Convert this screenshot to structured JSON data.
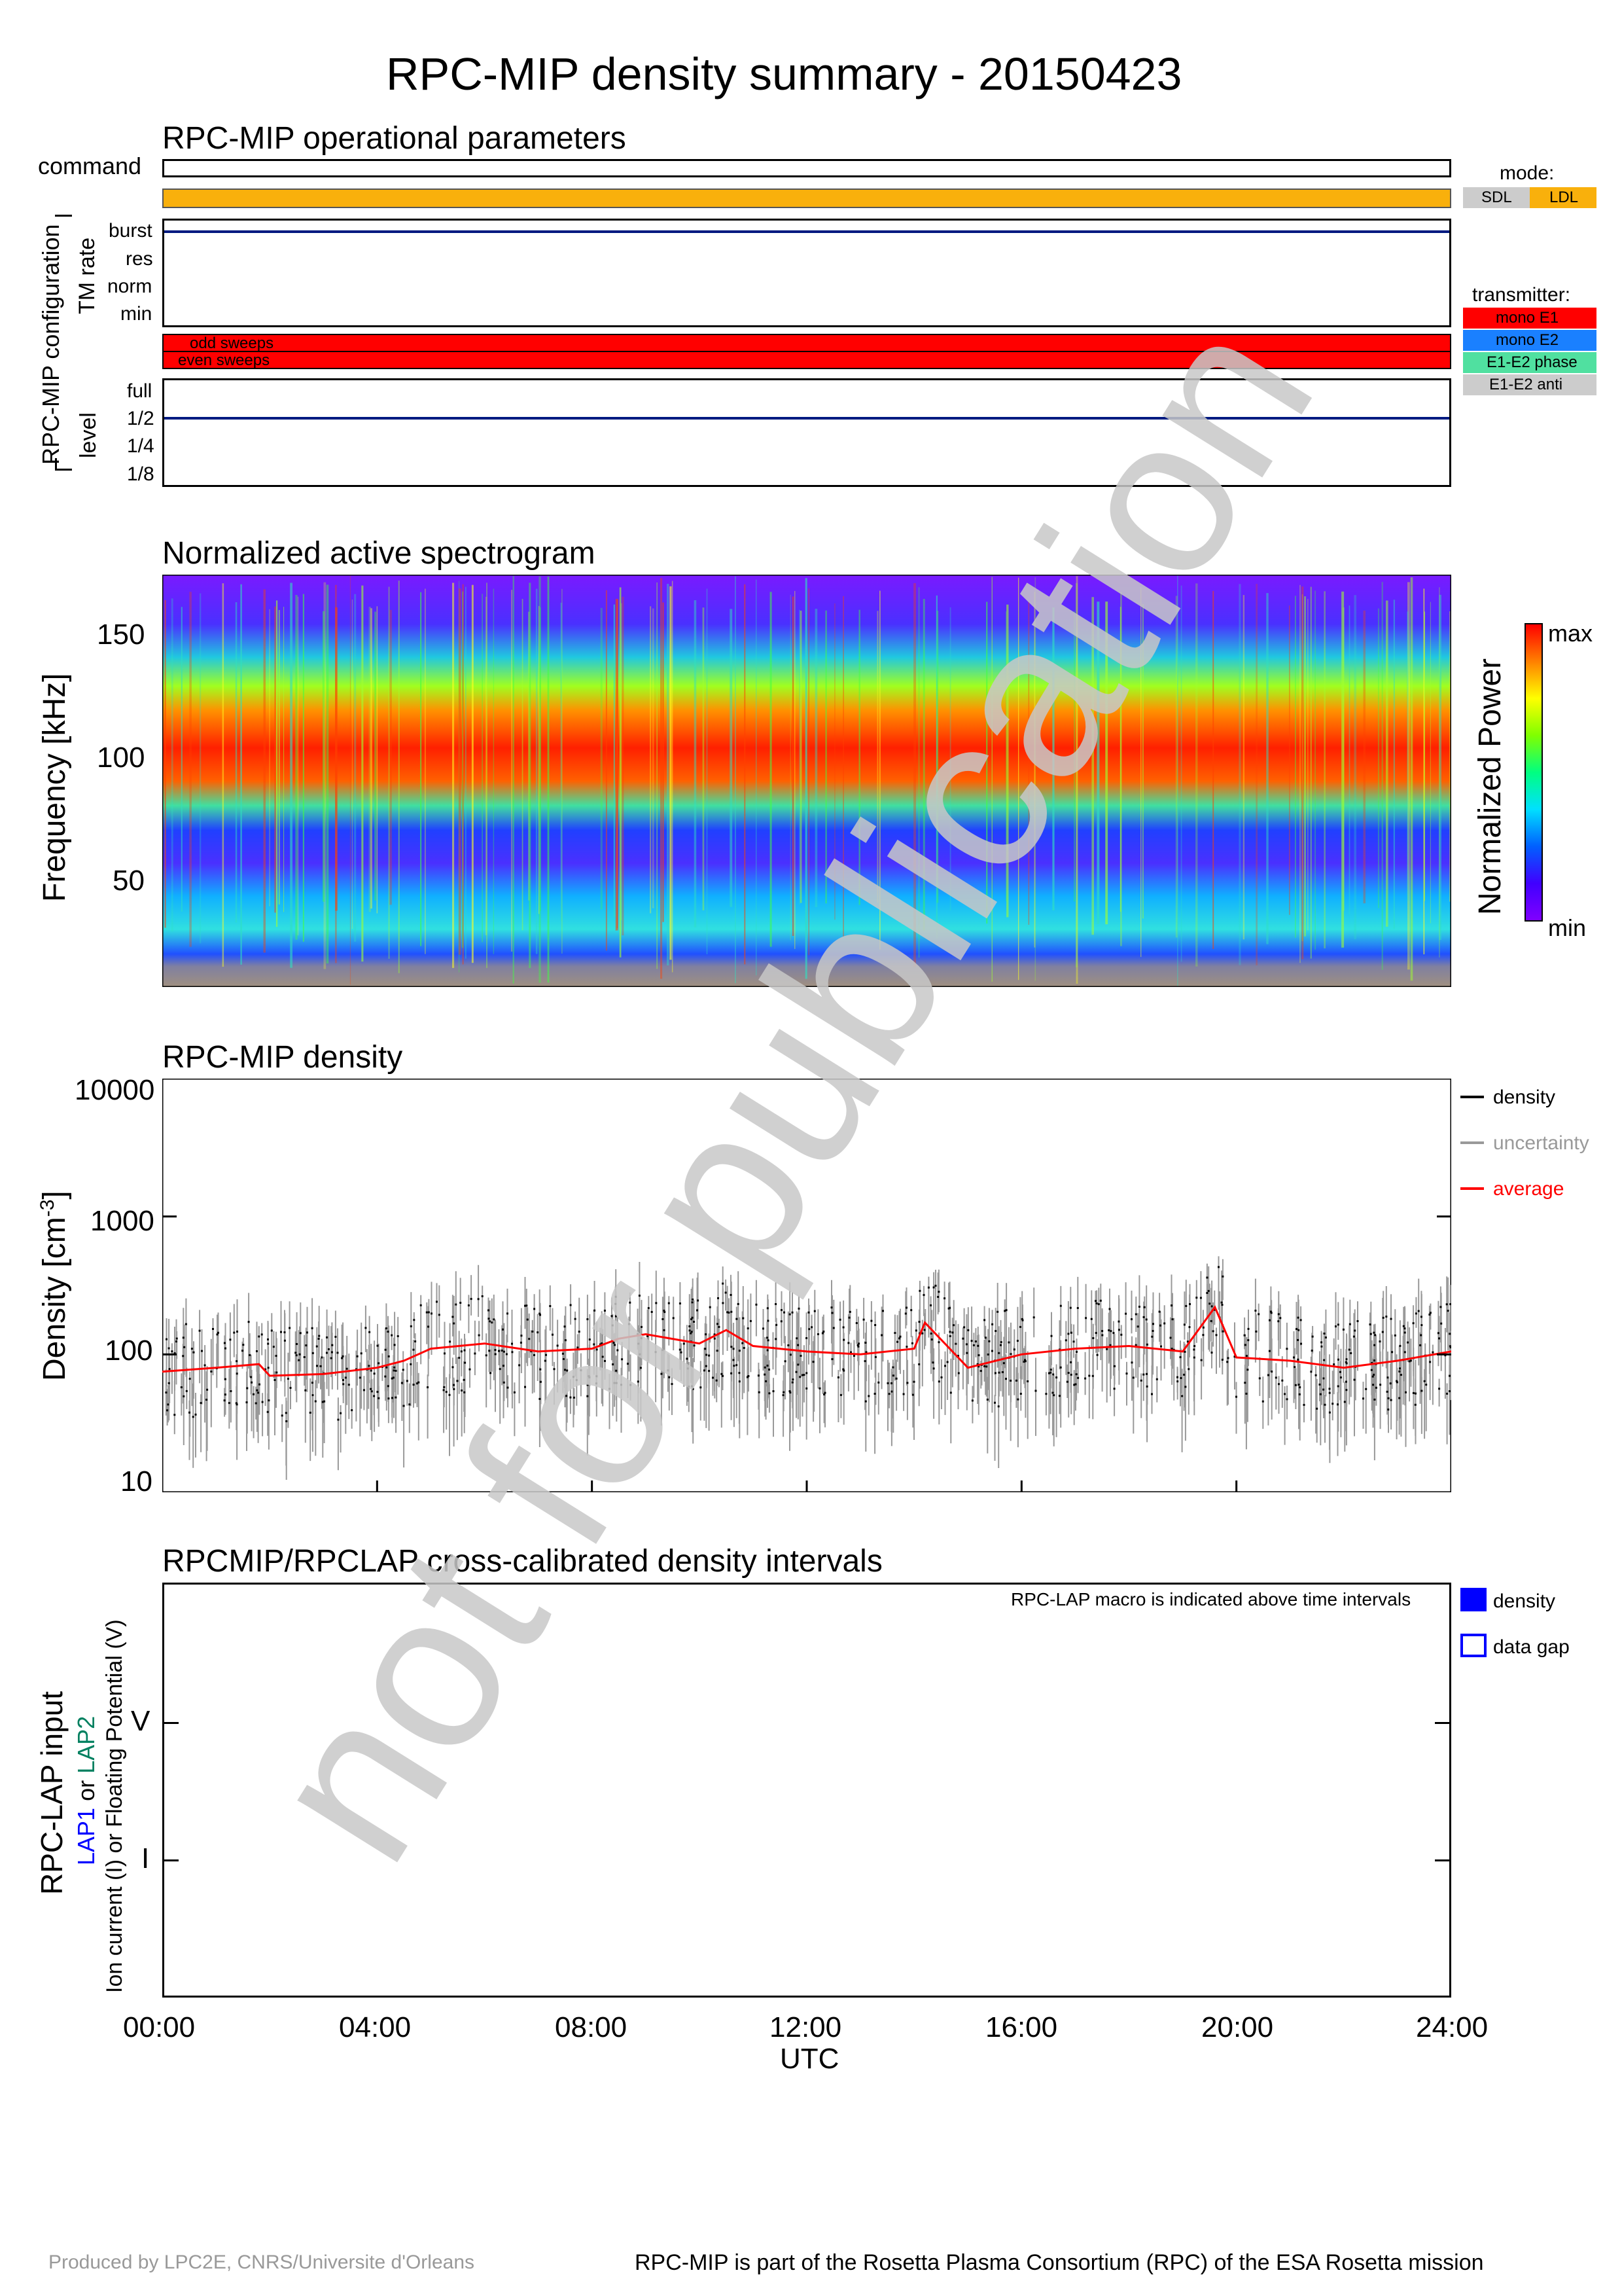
{
  "title": "RPC-MIP density summary - 20150423",
  "panel1": {
    "title": "RPC-MIP operational parameters",
    "command_label": "command",
    "config_label": "RPC-MIP configuration",
    "tm_rate_label": "TM rate",
    "tm_levels": [
      "burst",
      "res",
      "norm",
      "min"
    ],
    "sweeps": [
      "odd sweeps",
      "even sweeps"
    ],
    "level_label": "level",
    "levels": [
      "full",
      "1/2",
      "1/4",
      "1/8"
    ],
    "mode_legend": {
      "label": "mode:",
      "items": [
        {
          "name": "SDL",
          "color": "#cccccc"
        },
        {
          "name": "LDL",
          "color": "#f9b00c"
        }
      ]
    },
    "transmitter_legend": {
      "label": "transmitter:",
      "items": [
        {
          "name": "mono E1",
          "color": "#ff0000"
        },
        {
          "name": "mono E2",
          "color": "#1a80ff"
        },
        {
          "name": "E1-E2 phase",
          "color": "#50e0a0"
        },
        {
          "name": "E1-E2 anti",
          "color": "#cccccc"
        }
      ]
    }
  },
  "panel2": {
    "title": "Normalized active spectrogram",
    "ylabel": "Frequency [kHz]",
    "yticks": [
      "150",
      "100",
      "50"
    ],
    "colorbar_label": "Normalized Power",
    "colorbar_max": "max",
    "colorbar_min": "min"
  },
  "panel3": {
    "title": "RPC-MIP density",
    "ylabel_main": "Density [cm",
    "ylabel_sup": "-3",
    "ylabel_end": "]",
    "yticks": [
      "10000",
      "1000",
      "100",
      "10"
    ],
    "legend": [
      {
        "name": "density",
        "color": "#000000"
      },
      {
        "name": "uncertainty",
        "color": "#999999"
      },
      {
        "name": "average",
        "color": "#ff0000"
      }
    ]
  },
  "panel4": {
    "title": "RPCMIP/RPCLAP cross-calibrated density intervals",
    "note": "RPC-LAP macro is indicated above time intervals",
    "ylabel1": "RPC-LAP input",
    "ylabel2_a": "LAP1",
    "ylabel2_b": " or ",
    "ylabel2_c": "LAP2",
    "ylabel3": "Ion current (I) or Floating Potential (V)",
    "yticks": [
      "V",
      "I"
    ],
    "legend": [
      {
        "name": "density"
      },
      {
        "name": "data gap"
      }
    ]
  },
  "xaxis": {
    "ticks": [
      "00:00",
      "04:00",
      "08:00",
      "12:00",
      "16:00",
      "20:00",
      "24:00"
    ],
    "label": "UTC"
  },
  "footer_left": "Produced by LPC2E, CNRS/Universite d'Orleans",
  "footer_right": "RPC-MIP is part of the Rosetta Plasma Consortium (RPC) of the ESA Rosetta mission",
  "watermark": "not for publication",
  "chart_data": [
    {
      "type": "line",
      "title": "RPC-MIP operational parameters",
      "x_range_hours": [
        0,
        24
      ],
      "tm_rate": "burst",
      "level": "1/2",
      "mode": "LDL",
      "transmitter": "mono E1"
    },
    {
      "type": "heatmap",
      "title": "Normalized active spectrogram",
      "ylabel": "Frequency [kHz]",
      "ylim": [
        7,
        175
      ],
      "x_range_hours": [
        0,
        24
      ],
      "dominant_band_kHz": [
        85,
        120
      ]
    },
    {
      "type": "scatter",
      "title": "RPC-MIP density",
      "ylabel": "Density [cm-3]",
      "log_y": true,
      "ylim": [
        10,
        10000
      ],
      "x_hours": [
        0,
        1,
        1.8,
        2,
        3,
        4,
        4.5,
        5,
        6,
        7,
        8,
        8.5,
        9,
        10,
        10.5,
        11,
        12,
        13,
        14,
        14.2,
        15,
        16,
        17,
        18,
        19,
        19.6,
        20,
        21,
        22,
        23,
        24
      ],
      "average": [
        75,
        80,
        85,
        70,
        72,
        80,
        90,
        110,
        120,
        105,
        110,
        130,
        140,
        120,
        150,
        115,
        105,
        100,
        110,
        170,
        80,
        100,
        110,
        115,
        105,
        220,
        95,
        90,
        80,
        90,
        105
      ]
    },
    {
      "type": "table",
      "title": "RPCMIP/RPCLAP cross-calibrated density intervals",
      "intervals": []
    }
  ]
}
